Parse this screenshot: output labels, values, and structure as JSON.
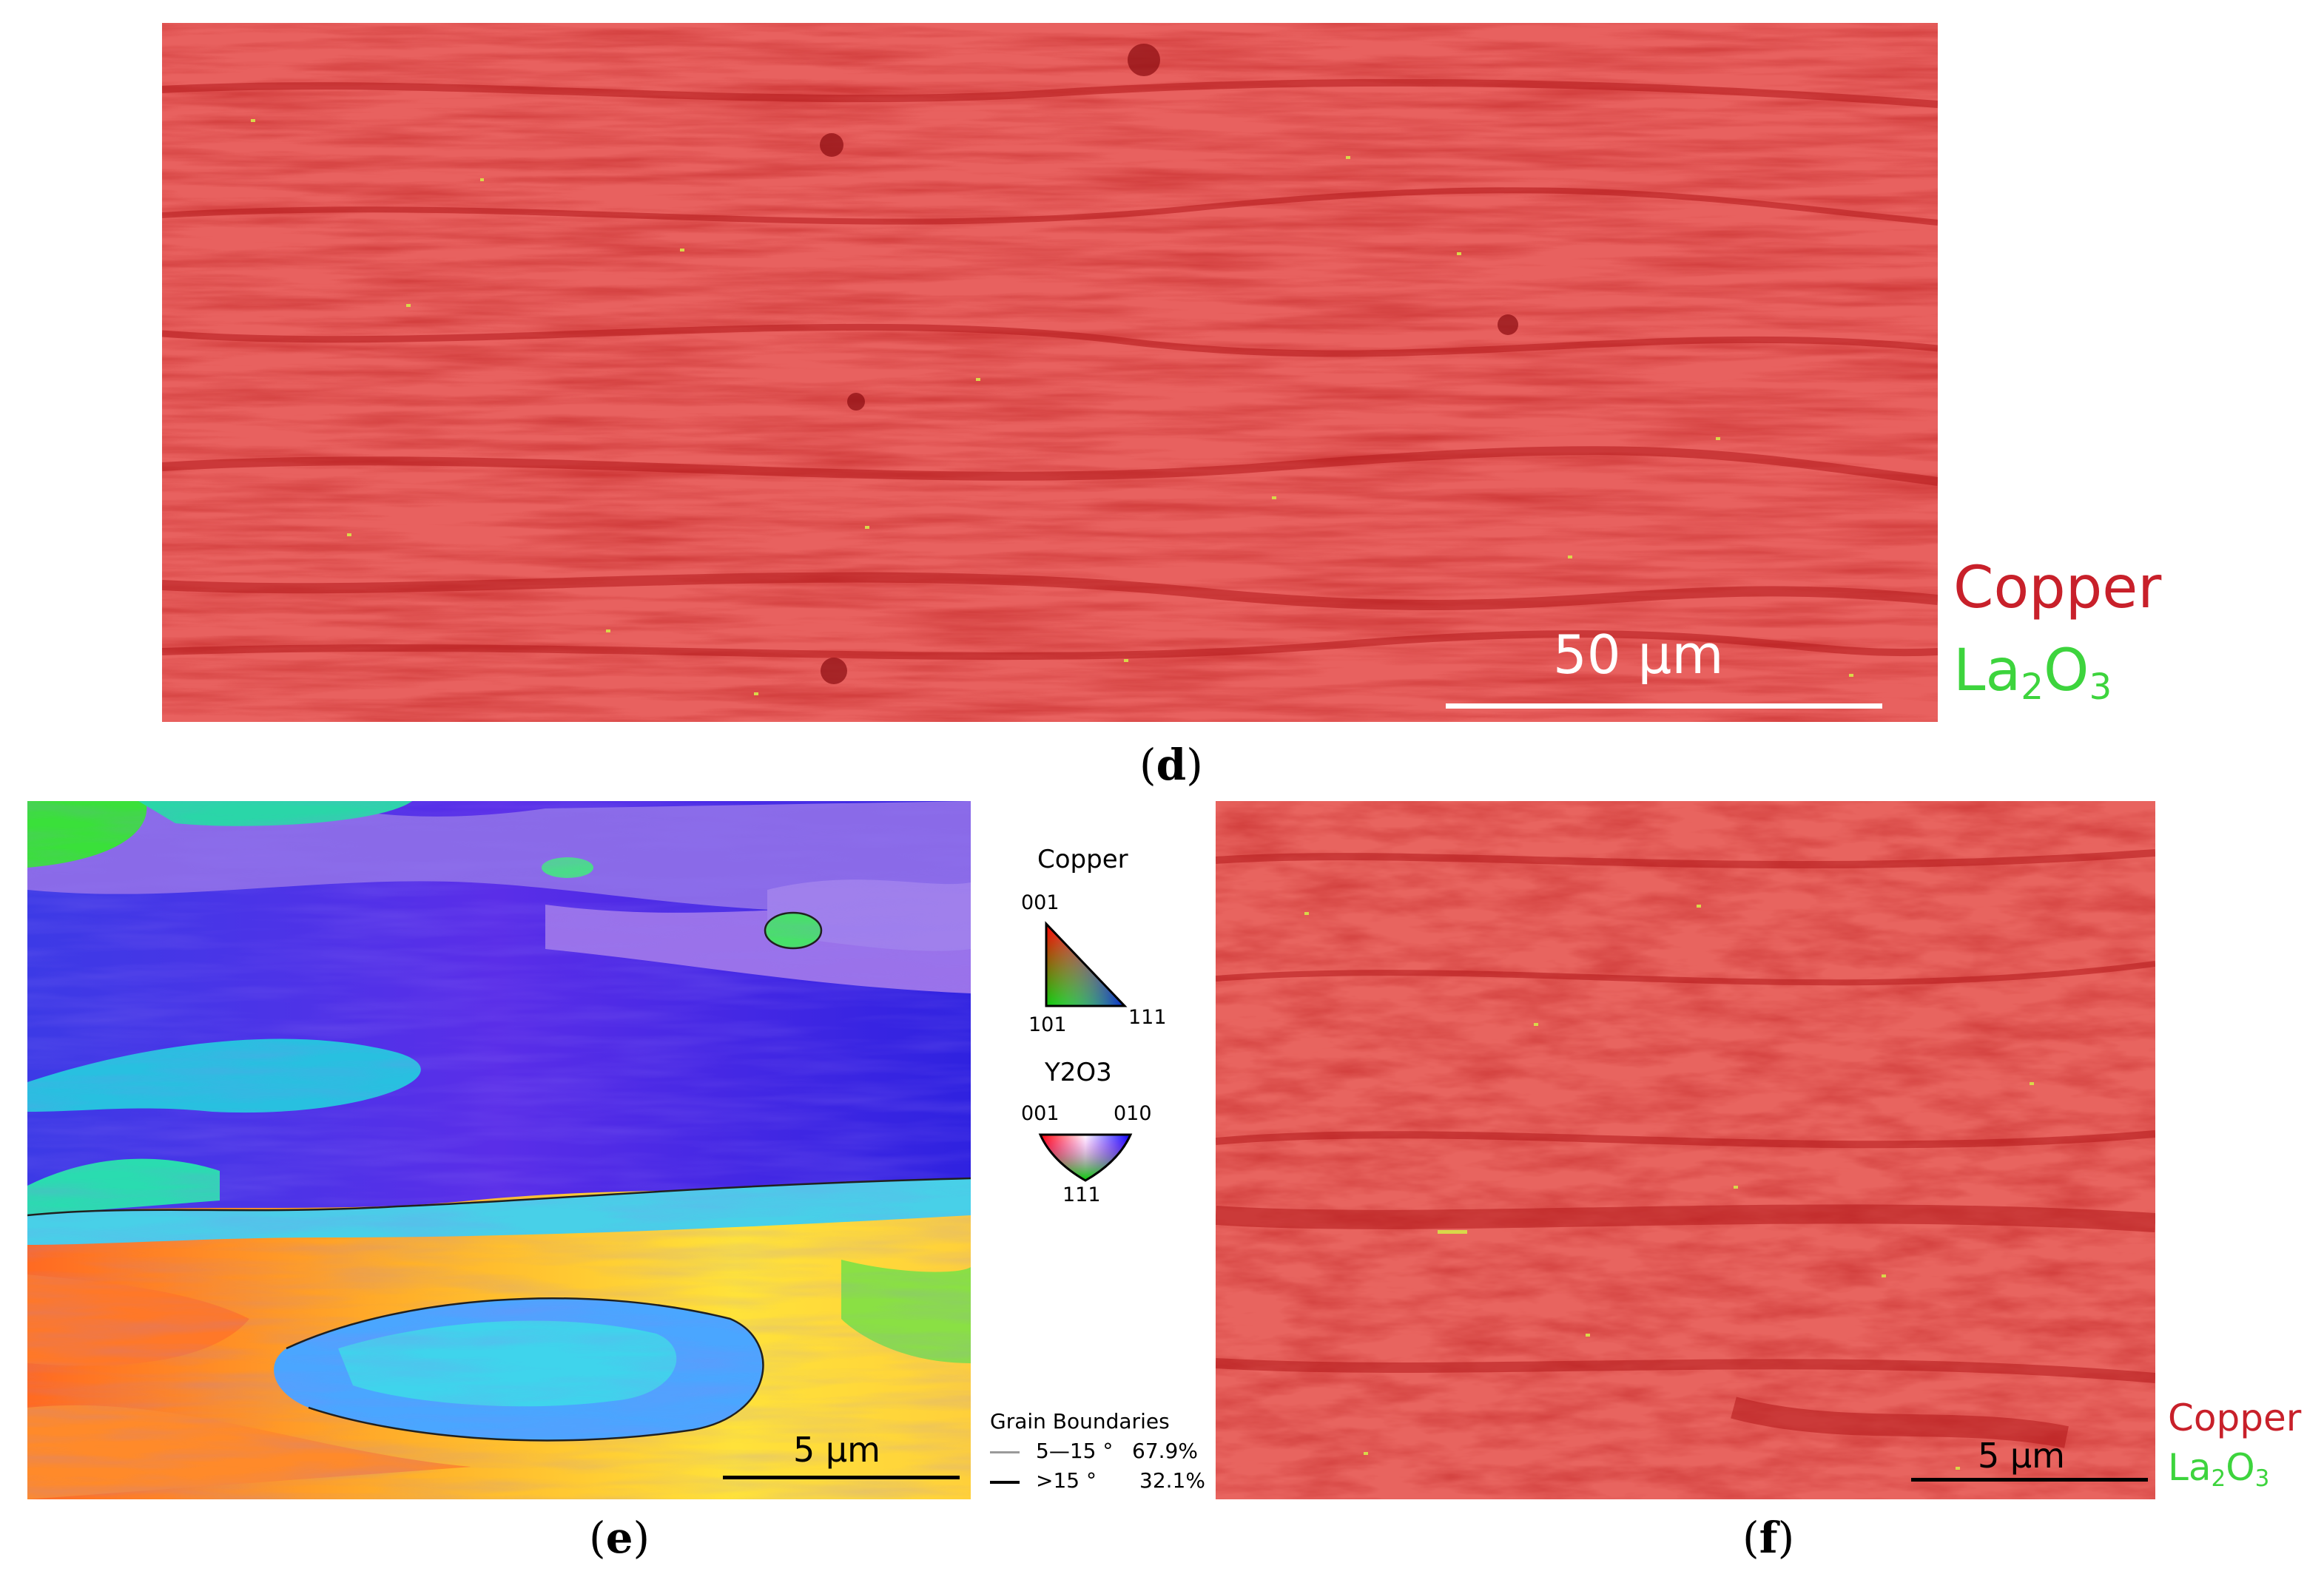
{
  "panel_d": {
    "scale_label": "50 μm",
    "legend": {
      "copper": "Copper",
      "la2o3_base": "La",
      "la2o3_sub1": "2",
      "la2o3_mid": "O",
      "la2o3_sub2": "3"
    },
    "caption": "d"
  },
  "panel_e": {
    "scale_label": "5 μm",
    "caption": "e"
  },
  "panel_f": {
    "scale_label": "5 μm",
    "legend": {
      "copper": "Copper",
      "la2o3_base": "La",
      "la2o3_sub1": "2",
      "la2o3_mid": "O",
      "la2o3_sub2": "3"
    },
    "caption": "f"
  },
  "color_key": {
    "copper_title": "Copper",
    "copper_001": "001",
    "copper_101": "101",
    "copper_111": "111",
    "y2o3_title": "Y2O3",
    "y2o3_001": "001",
    "y2o3_010": "010",
    "y2o3_111": "111"
  },
  "grain_boundaries": {
    "title": "Grain Boundaries",
    "low_label": "5—15 °",
    "low_value": "67.9%",
    "high_label": ">15 °",
    "high_value": "32.1%"
  },
  "colors": {
    "copper_legend": "#c8202a",
    "la2o3_legend": "#3dd43d",
    "copper_map": "#e8605f",
    "copper_dark": "#b01818",
    "particle": "#d8d84a"
  }
}
